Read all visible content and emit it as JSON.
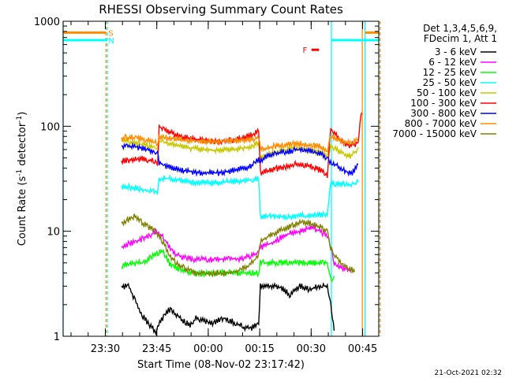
{
  "chart_data": {
    "type": "line",
    "title": "RHESSI Observing Summary Count Rates",
    "xlabel": "Start Time (08-Nov-02 23:17:42)",
    "ylabel_main": "Count Rate (s",
    "ylabel_sup1": "-1",
    "ylabel_mid": " detector",
    "ylabel_sup2": "-1",
    "ylabel_end": ")",
    "x_unit": "minutes after 23:17:42",
    "xlim": [
      0,
      92
    ],
    "ylim": [
      1,
      1000
    ],
    "y_scale": "log",
    "x_ticks": [
      {
        "label": "23:30",
        "x": 12.3
      },
      {
        "label": "23:45",
        "x": 27.3
      },
      {
        "label": "00:00",
        "x": 42.3
      },
      {
        "label": "00:15",
        "x": 57.3
      },
      {
        "label": "00:30",
        "x": 72.3
      },
      {
        "label": "00:45",
        "x": 87.3
      }
    ],
    "y_ticks": [
      {
        "label": "1",
        "y": 1
      },
      {
        "label": "10",
        "y": 10
      },
      {
        "label": "100",
        "y": 100
      },
      {
        "label": "1000",
        "y": 1000
      }
    ],
    "legend": {
      "placement": "right",
      "header1": "Det 1,3,4,5,6,9,",
      "header2": "FDecim 1, Att 1"
    },
    "series": [
      {
        "name": "3 - 6 keV",
        "color": "#000000",
        "x": [
          17,
          19,
          21,
          23,
          25,
          27,
          29,
          31,
          33,
          35,
          37,
          39,
          41,
          43,
          45,
          47,
          49,
          51,
          53,
          55,
          57,
          57.5,
          60,
          63,
          66,
          69,
          72,
          75,
          77,
          78,
          79
        ],
        "y": [
          3,
          3,
          2.2,
          1.6,
          1.3,
          1.1,
          1.5,
          1.8,
          1.6,
          1.4,
          1.3,
          1.5,
          1.4,
          1.3,
          1.4,
          1.5,
          1.4,
          1.3,
          1.2,
          1.2,
          1.3,
          3,
          3,
          3,
          2.5,
          3,
          2.8,
          3,
          3,
          2,
          1.1
        ]
      },
      {
        "name": "6 - 12 keV",
        "color": "#ff00ff",
        "x": [
          17,
          19,
          21,
          23,
          25,
          27,
          29,
          31,
          33,
          35,
          37,
          39,
          41,
          43,
          45,
          47,
          49,
          51,
          53,
          55,
          57,
          57.5,
          60,
          63,
          66,
          69,
          72,
          75,
          77,
          78,
          79,
          81,
          84
        ],
        "y": [
          7,
          7.5,
          8,
          8.5,
          9,
          10,
          9,
          7,
          6,
          5.6,
          5.5,
          5.4,
          5.4,
          5.4,
          5.4,
          5.4,
          5.5,
          5.5,
          5.6,
          5.8,
          6.2,
          7,
          7.5,
          8.5,
          9.5,
          10,
          11,
          10,
          9,
          7,
          5,
          4.5,
          4.2
        ]
      },
      {
        "name": "12 - 25 keV",
        "color": "#00ff00",
        "x": [
          17,
          19,
          21,
          23,
          25,
          27,
          29,
          31,
          33,
          35,
          37,
          39,
          41,
          43,
          45,
          47,
          49,
          51,
          53,
          55,
          57,
          57.5,
          60,
          63,
          66,
          69,
          72,
          75,
          77,
          78,
          79
        ],
        "y": [
          4.5,
          5,
          5,
          5,
          5.5,
          6,
          6.5,
          5,
          4.5,
          4.2,
          4,
          4,
          4,
          4,
          4,
          4,
          4,
          4,
          4,
          4,
          4,
          5,
          5,
          5,
          5,
          5,
          5,
          5,
          5,
          3.5,
          3.5
        ]
      },
      {
        "name": "25 - 50 keV",
        "color": "#00ffff",
        "x": [
          17,
          20,
          23,
          26,
          27.5,
          28,
          30,
          35,
          40,
          45,
          50,
          55,
          57,
          57.5,
          60,
          63,
          66,
          69,
          72,
          75,
          77,
          78,
          81,
          84,
          86
        ],
        "y": [
          27,
          26,
          25,
          24,
          23,
          31,
          32,
          30,
          29,
          29,
          30,
          31,
          32,
          14,
          14,
          14,
          13.5,
          14,
          14,
          14.5,
          14.5,
          29,
          28,
          28,
          30
        ]
      },
      {
        "name": "50 - 100 keV",
        "color": "#c8c800",
        "x": [
          17,
          20,
          23,
          26,
          27.5,
          28,
          30,
          35,
          40,
          45,
          50,
          55,
          57,
          57.5,
          60,
          63,
          66,
          69,
          72,
          75,
          77,
          78,
          81,
          84,
          86
        ],
        "y": [
          72,
          70,
          67,
          64,
          62,
          72,
          70,
          64,
          60,
          59,
          60,
          64,
          70,
          50,
          55,
          58,
          62,
          62,
          60,
          56,
          52,
          65,
          56,
          52,
          62
        ]
      },
      {
        "name": "100 - 300 keV",
        "color": "#ff0000",
        "x": [
          17,
          20,
          23,
          26,
          27.5,
          28,
          30,
          35,
          40,
          45,
          50,
          55,
          57,
          57.5,
          60,
          63,
          66,
          69,
          72,
          75,
          77,
          78,
          81,
          84,
          86,
          87
        ],
        "y": [
          47,
          48,
          49,
          47,
          44,
          100,
          90,
          78,
          74,
          72,
          74,
          82,
          92,
          36,
          38,
          40,
          42,
          44,
          42,
          38,
          34,
          95,
          72,
          65,
          70,
          140
        ]
      },
      {
        "name": "300 - 800 keV",
        "color": "#0000ff",
        "x": [
          17,
          20,
          23,
          26,
          27.5,
          28,
          30,
          35,
          40,
          45,
          50,
          55,
          57,
          57.5,
          60,
          63,
          66,
          69,
          72,
          75,
          77,
          78,
          81,
          84,
          86
        ],
        "y": [
          65,
          64,
          62,
          58,
          54,
          45,
          42,
          38,
          36,
          36,
          38,
          42,
          48,
          48,
          52,
          56,
          58,
          60,
          58,
          54,
          50,
          46,
          40,
          35,
          42
        ]
      },
      {
        "name": "800 - 7000 keV",
        "color": "#ff8c00",
        "x": [
          17,
          20,
          23,
          26,
          27.5,
          28,
          30,
          35,
          40,
          45,
          50,
          55,
          57,
          57.5,
          60,
          63,
          66,
          69,
          72,
          75,
          77,
          78,
          81,
          84,
          86
        ],
        "y": [
          78,
          78,
          76,
          72,
          68,
          80,
          78,
          74,
          72,
          72,
          73,
          75,
          78,
          60,
          63,
          66,
          68,
          68,
          66,
          64,
          60,
          80,
          72,
          68,
          75
        ]
      },
      {
        "name": "7000 - 15000 keV",
        "color": "#808000",
        "x": [
          17,
          19,
          21,
          23,
          25,
          27,
          29,
          31,
          33,
          35,
          37,
          39,
          41,
          43,
          45,
          47,
          49,
          51,
          53,
          55,
          57,
          57.5,
          60,
          63,
          66,
          69,
          72,
          75,
          77,
          78,
          79,
          81,
          83,
          85
        ],
        "y": [
          12,
          13,
          14,
          12,
          11,
          10,
          8,
          6,
          5,
          4.5,
          4.2,
          4,
          4,
          4,
          4,
          4,
          4,
          4.2,
          4.5,
          5,
          6,
          8,
          9,
          10,
          11,
          12,
          12,
          11,
          10,
          7,
          6,
          5,
          4.5,
          4.2
        ]
      }
    ],
    "vlines": [
      {
        "x": 0,
        "color": "#00ffff",
        "style": "solid"
      },
      {
        "x": 12.5,
        "color": "#ff8c00",
        "style": "dashed"
      },
      {
        "x": 12.9,
        "color": "#00ffff",
        "style": "dashed"
      },
      {
        "x": 78.2,
        "color": "#00ffff",
        "style": "solid"
      },
      {
        "x": 87.2,
        "color": "#ff8c00",
        "style": "solid"
      },
      {
        "x": 88.0,
        "color": "#00ffff",
        "style": "solid"
      },
      {
        "x": 92,
        "color": "#00ffff",
        "style": "dashed"
      },
      {
        "x": 92.4,
        "color": "#ff8c00",
        "style": "dashed"
      }
    ],
    "flag_bars": [
      {
        "x0": 0,
        "x1": 12.5,
        "y": 780,
        "color": "#ff8c00"
      },
      {
        "x0": 0,
        "x1": 12.9,
        "y": 660,
        "color": "#00ffff"
      },
      {
        "x0": 78.2,
        "x1": 88.0,
        "y": 660,
        "color": "#00ffff"
      },
      {
        "x0": 88.0,
        "x1": 92,
        "y": 780,
        "color": "#ff8c00"
      },
      {
        "x0": 88.0,
        "x1": 92,
        "y": 660,
        "color": "#00ffff"
      },
      {
        "x0": 72.4,
        "x1": 74.6,
        "y": 535,
        "color": "#ff0000"
      }
    ],
    "flag_labels": [
      {
        "text": "S",
        "x": 13.2,
        "y": 780,
        "color": "#ff8c00"
      },
      {
        "text": "N",
        "x": 13.2,
        "y": 660,
        "color": "#00ffff"
      },
      {
        "text": "F",
        "x": 69.8,
        "y": 535,
        "color": "#ff0000"
      }
    ],
    "footer": "21-Oct-2021 02:32"
  }
}
